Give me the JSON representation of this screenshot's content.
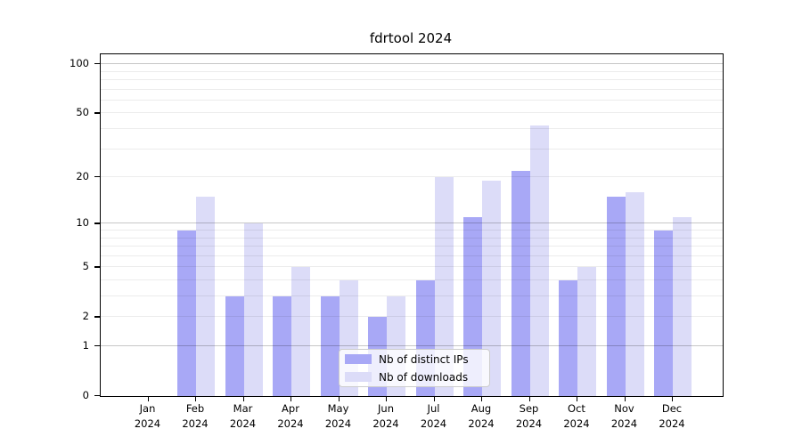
{
  "title": "fdrtool 2024",
  "chart_data": {
    "type": "bar",
    "title": "fdrtool 2024",
    "scale": "log1p",
    "grid": true,
    "legend_position": "lower center",
    "categories": [
      "Jan 2024",
      "Feb 2024",
      "Mar 2024",
      "Apr 2024",
      "May 2024",
      "Jun 2024",
      "Jul 2024",
      "Aug 2024",
      "Sep 2024",
      "Oct 2024",
      "Nov 2024",
      "Dec 2024"
    ],
    "series": [
      {
        "name": "Nb of distinct IPs",
        "color": "#a8a8f6",
        "values": [
          0,
          9,
          3,
          3,
          3,
          2,
          4,
          11,
          22,
          4,
          15,
          9
        ]
      },
      {
        "name": "Nb of downloads",
        "color": "#dcdcf8",
        "values": [
          0,
          15,
          10,
          5,
          4,
          3,
          20,
          19,
          42,
          5,
          16,
          11
        ]
      }
    ],
    "xlabel": "",
    "ylabel": "",
    "y_ticks": [
      0,
      1,
      2,
      5,
      10,
      20,
      50,
      100
    ],
    "ylim": [
      0,
      115
    ]
  },
  "colors": {
    "bar_distinct_ips": "#a8a8f6",
    "bar_downloads": "#dcdcf8",
    "grid_minor": "rgba(0,0,0,0.075)",
    "grid_major": "rgba(0,0,0,0.22)",
    "axis": "#000000"
  }
}
